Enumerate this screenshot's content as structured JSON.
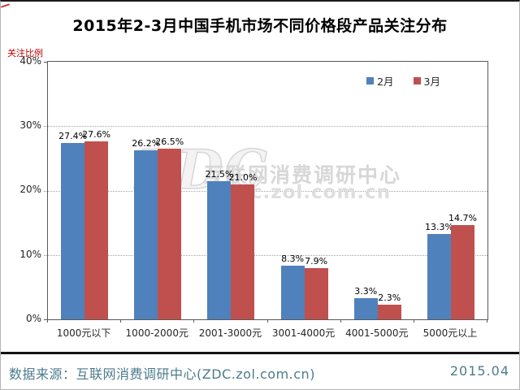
{
  "title": "2015年2-3月中国手机市场不同价格段产品关注分布",
  "y_axis_unit": "关注比例",
  "chart_data": {
    "type": "bar",
    "title": "2015年2-3月中国手机市场不同价格段产品关注分布",
    "ylabel": "关注比例",
    "categories": [
      "1000元以下",
      "1000-2000元",
      "2001-3000元",
      "3001-4000元",
      "4001-5000元",
      "5000元以上"
    ],
    "series": [
      {
        "name": "2月",
        "color": "#4f81bd",
        "values": [
          27.4,
          26.2,
          21.5,
          8.3,
          3.3,
          13.3
        ]
      },
      {
        "name": "3月",
        "color": "#c0504d",
        "values": [
          27.6,
          26.5,
          21.0,
          7.9,
          2.3,
          14.7
        ]
      }
    ],
    "ylim": [
      0,
      40
    ],
    "yticks": [
      "40%",
      "30%",
      "20%",
      "10%",
      "0%"
    ],
    "grid": "horizontal-dotted",
    "legend_position": "inside-top-right",
    "data_label_format": "{value}%"
  },
  "watermark": {
    "logo": "ZDC",
    "line1": "互联网消费调研中心",
    "line2": "zdc.zol.com.cn"
  },
  "footer": {
    "source": "数据来源：互联网消费调研中心(ZDC.zol.com.cn)",
    "date": "2015.04",
    "text_color": "#4d7b8d"
  }
}
